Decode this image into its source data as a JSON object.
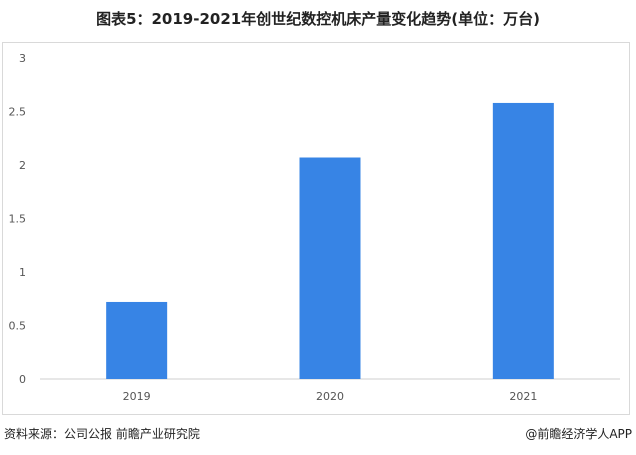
{
  "chart_data": {
    "type": "bar",
    "title": "图表5：2019-2021年创世纪数控机床产量变化趋势(单位：万台)",
    "categories": [
      "2019",
      "2020",
      "2021"
    ],
    "values": [
      0.72,
      2.07,
      2.58
    ],
    "ylim": [
      0,
      3
    ],
    "yticks": [
      0,
      0.5,
      1,
      1.5,
      2,
      2.5,
      3
    ],
    "xlabel": "",
    "ylabel": "",
    "grid": false,
    "bar_color": "#3784e5"
  },
  "footer": {
    "source": "资料来源：公司公报 前瞻产业研究院",
    "credit": "@前瞻经济学人APP"
  },
  "colors": {
    "axis": "#cfcfcf",
    "text": "#555555",
    "frame": "#d9d9d9"
  }
}
